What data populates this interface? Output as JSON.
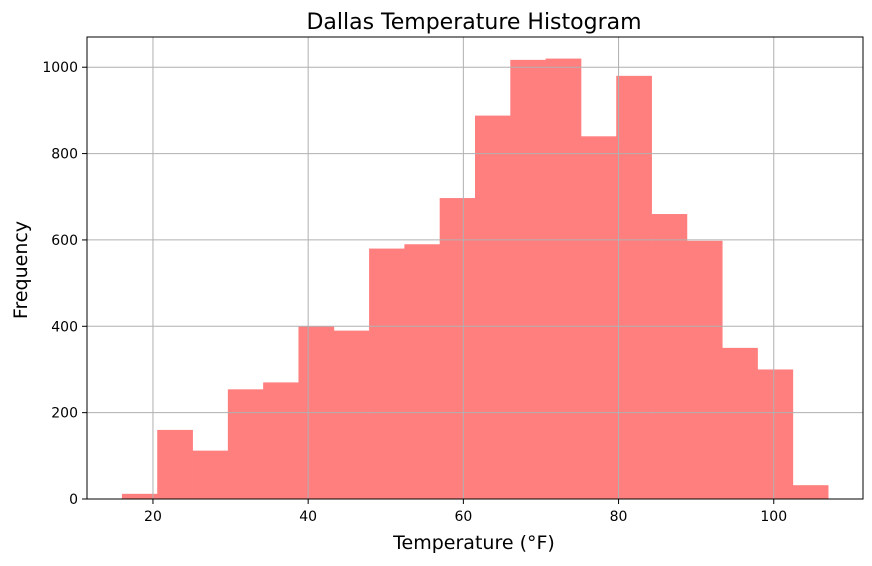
{
  "chart_data": {
    "type": "bar",
    "title": "Dallas Temperature Histogram",
    "xlabel": "Temperature (°F)",
    "ylabel": "Frequency",
    "xlim": [
      11.5,
      111.5
    ],
    "ylim": [
      0,
      1070
    ],
    "xticks": [
      20,
      40,
      60,
      80,
      100
    ],
    "yticks": [
      0,
      200,
      400,
      600,
      800,
      1000
    ],
    "grid": true,
    "legend": "none",
    "bar_color": "#ff7f7f",
    "bins": [
      {
        "x0": 16.0,
        "x1": 20.55,
        "count": 12
      },
      {
        "x0": 20.55,
        "x1": 25.1,
        "count": 160
      },
      {
        "x0": 25.1,
        "x1": 29.65,
        "count": 112
      },
      {
        "x0": 29.65,
        "x1": 34.2,
        "count": 254
      },
      {
        "x0": 34.2,
        "x1": 38.75,
        "count": 270
      },
      {
        "x0": 38.75,
        "x1": 43.3,
        "count": 400
      },
      {
        "x0": 43.3,
        "x1": 47.85,
        "count": 390
      },
      {
        "x0": 47.85,
        "x1": 52.4,
        "count": 580
      },
      {
        "x0": 52.4,
        "x1": 56.95,
        "count": 590
      },
      {
        "x0": 56.95,
        "x1": 61.5,
        "count": 697
      },
      {
        "x0": 61.5,
        "x1": 66.05,
        "count": 888
      },
      {
        "x0": 66.05,
        "x1": 70.6,
        "count": 1017
      },
      {
        "x0": 70.6,
        "x1": 75.15,
        "count": 1020
      },
      {
        "x0": 75.15,
        "x1": 79.7,
        "count": 840
      },
      {
        "x0": 79.7,
        "x1": 84.25,
        "count": 980
      },
      {
        "x0": 84.25,
        "x1": 88.8,
        "count": 660
      },
      {
        "x0": 88.8,
        "x1": 93.35,
        "count": 598
      },
      {
        "x0": 93.35,
        "x1": 97.9,
        "count": 350
      },
      {
        "x0": 97.9,
        "x1": 102.45,
        "count": 300
      },
      {
        "x0": 102.45,
        "x1": 107.0,
        "count": 32
      }
    ]
  }
}
